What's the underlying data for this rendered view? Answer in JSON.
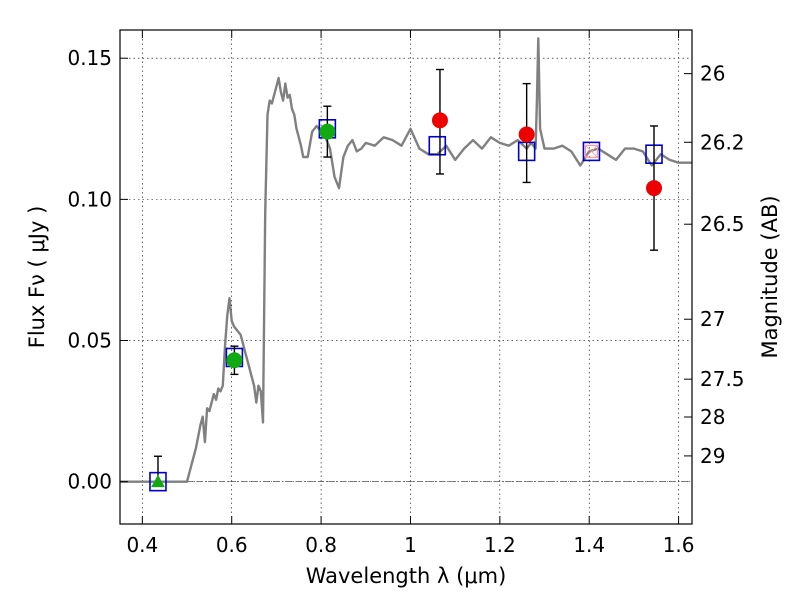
{
  "chart_data": {
    "type": "line",
    "xlabel": "Wavelength  λ (μm)",
    "ylabel_left": "Flux  Fν  ( μJy )",
    "ylabel_right": "Magnitude (AB)",
    "xlim": [
      0.35,
      1.63
    ],
    "ylim": [
      -0.015,
      0.16
    ],
    "grid": true,
    "x_ticks": [
      {
        "value": 0.4,
        "label": "0.4"
      },
      {
        "value": 0.6,
        "label": "0.6"
      },
      {
        "value": 0.8,
        "label": "0.8"
      },
      {
        "value": 1.0,
        "label": "1"
      },
      {
        "value": 1.2,
        "label": "1.2"
      },
      {
        "value": 1.4,
        "label": "1.4"
      },
      {
        "value": 1.6,
        "label": "1.6"
      }
    ],
    "y_ticks": [
      {
        "value": 0.0,
        "label": "0.00"
      },
      {
        "value": 0.05,
        "label": "0.05"
      },
      {
        "value": 0.1,
        "label": "0.10"
      },
      {
        "value": 0.15,
        "label": "0.15"
      }
    ],
    "mag_ticks": [
      {
        "value": 26,
        "label": "26"
      },
      {
        "value": 26.2,
        "label": "26.2"
      },
      {
        "value": 26.5,
        "label": "26.5"
      },
      {
        "value": 27,
        "label": "27"
      },
      {
        "value": 27.5,
        "label": "27.5"
      },
      {
        "value": 28,
        "label": "28"
      },
      {
        "value": 29,
        "label": "29"
      }
    ],
    "colors": {
      "model": "#808080",
      "model_points": "#0000cc",
      "green_points": "#11aa11",
      "red_points": "#ee0000",
      "upper_limit_box": "#ff9999",
      "errorbar": "#000000"
    },
    "model_spectrum": {
      "x": [
        0.35,
        0.47,
        0.5,
        0.52,
        0.53,
        0.535,
        0.54,
        0.545,
        0.55,
        0.56,
        0.565,
        0.57,
        0.575,
        0.58,
        0.585,
        0.59,
        0.595,
        0.6,
        0.605,
        0.61,
        0.62,
        0.63,
        0.64,
        0.645,
        0.65,
        0.655,
        0.66,
        0.665,
        0.67,
        0.675,
        0.68,
        0.685,
        0.69,
        0.7,
        0.705,
        0.71,
        0.715,
        0.72,
        0.725,
        0.73,
        0.735,
        0.74,
        0.745,
        0.75,
        0.755,
        0.76,
        0.77,
        0.78,
        0.79,
        0.8,
        0.81,
        0.82,
        0.83,
        0.84,
        0.85,
        0.86,
        0.87,
        0.88,
        0.89,
        0.9,
        0.92,
        0.94,
        0.96,
        0.98,
        1.0,
        1.02,
        1.04,
        1.06,
        1.08,
        1.1,
        1.12,
        1.14,
        1.16,
        1.18,
        1.2,
        1.22,
        1.24,
        1.26,
        1.27,
        1.28,
        1.283,
        1.286,
        1.29,
        1.3,
        1.32,
        1.34,
        1.36,
        1.38,
        1.4,
        1.42,
        1.44,
        1.46,
        1.48,
        1.5,
        1.52,
        1.54,
        1.56,
        1.58,
        1.6,
        1.63
      ],
      "y": [
        0.0,
        0.0,
        0.0,
        0.012,
        0.02,
        0.023,
        0.014,
        0.026,
        0.025,
        0.031,
        0.029,
        0.033,
        0.032,
        0.034,
        0.048,
        0.059,
        0.065,
        0.057,
        0.055,
        0.054,
        0.052,
        0.046,
        0.04,
        0.037,
        0.034,
        0.028,
        0.034,
        0.032,
        0.021,
        0.095,
        0.13,
        0.135,
        0.134,
        0.14,
        0.143,
        0.138,
        0.135,
        0.141,
        0.136,
        0.137,
        0.132,
        0.13,
        0.125,
        0.122,
        0.119,
        0.115,
        0.115,
        0.124,
        0.126,
        0.124,
        0.122,
        0.118,
        0.108,
        0.104,
        0.115,
        0.119,
        0.121,
        0.117,
        0.118,
        0.12,
        0.119,
        0.122,
        0.121,
        0.119,
        0.125,
        0.118,
        0.116,
        0.116,
        0.119,
        0.114,
        0.118,
        0.121,
        0.118,
        0.122,
        0.12,
        0.119,
        0.121,
        0.118,
        0.12,
        0.118,
        0.135,
        0.157,
        0.125,
        0.118,
        0.118,
        0.119,
        0.117,
        0.112,
        0.117,
        0.118,
        0.116,
        0.114,
        0.118,
        0.118,
        0.117,
        0.112,
        0.116,
        0.114,
        0.113,
        0.113
      ]
    },
    "model_points": [
      {
        "x": 0.435,
        "y": 0.0
      },
      {
        "x": 0.606,
        "y": 0.044
      },
      {
        "x": 0.814,
        "y": 0.125
      },
      {
        "x": 1.06,
        "y": 0.119
      },
      {
        "x": 1.26,
        "y": 0.117
      },
      {
        "x": 1.405,
        "y": 0.117
      },
      {
        "x": 1.545,
        "y": 0.116
      }
    ],
    "observations": [
      {
        "marker": "triangle",
        "color": "green",
        "x": 0.435,
        "y": 0.0,
        "yerr_low": 0.0,
        "yerr_high": 0.009
      },
      {
        "marker": "circle",
        "color": "green",
        "x": 0.606,
        "y": 0.043,
        "yerr_low": 0.005,
        "yerr_high": 0.005
      },
      {
        "marker": "circle",
        "color": "green",
        "x": 0.814,
        "y": 0.124,
        "yerr_low": 0.009,
        "yerr_high": 0.009
      },
      {
        "marker": "circle",
        "color": "red",
        "x": 1.066,
        "y": 0.128,
        "yerr_low": 0.019,
        "yerr_high": 0.018
      },
      {
        "marker": "circle",
        "color": "red",
        "x": 1.26,
        "y": 0.123,
        "yerr_low": 0.017,
        "yerr_high": 0.018
      },
      {
        "marker": "circle",
        "color": "red",
        "x": 1.545,
        "y": 0.104,
        "yerr_low": 0.022,
        "yerr_high": 0.022
      }
    ],
    "upper_limits": [
      {
        "x": 1.405,
        "y": 0.117
      }
    ]
  }
}
